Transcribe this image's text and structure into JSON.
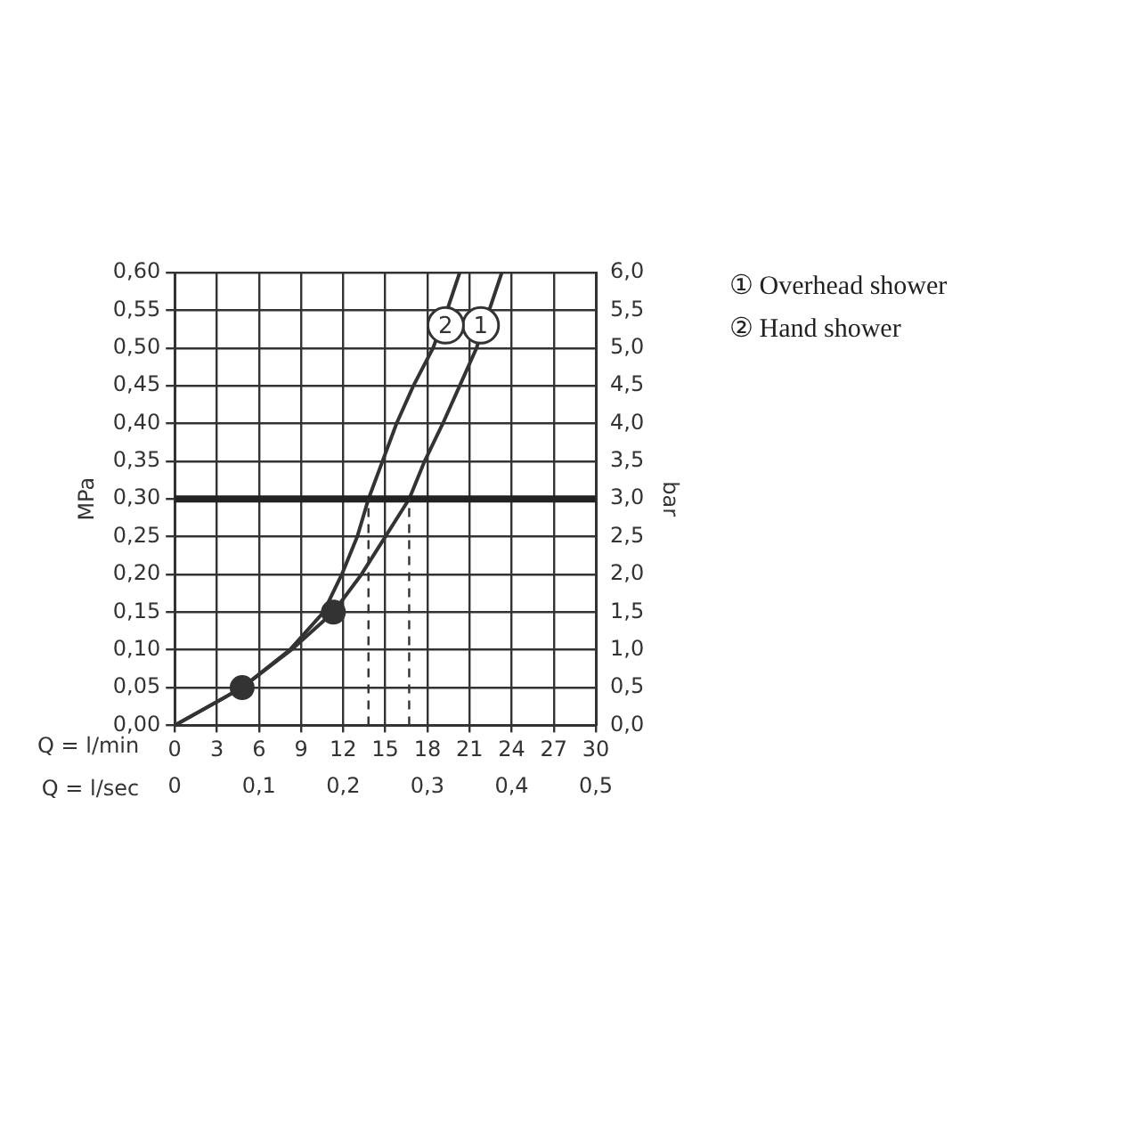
{
  "chart_data": {
    "type": "line",
    "xlabel": "Q = l/min",
    "x2label": "Q = l/sec",
    "ylabel": "MPa",
    "y2label": "bar",
    "xlim": [
      0,
      30
    ],
    "xticks": [
      0,
      3,
      6,
      9,
      12,
      15,
      18,
      21,
      24,
      27,
      30
    ],
    "x2lim": [
      0,
      0.5
    ],
    "x2ticks": [
      {
        "value": 0,
        "label": "0"
      },
      {
        "value": 0.1,
        "label": "0,1"
      },
      {
        "value": 0.2,
        "label": "0,2"
      },
      {
        "value": 0.3,
        "label": "0,3"
      },
      {
        "value": 0.4,
        "label": "0,4"
      },
      {
        "value": 0.5,
        "label": "0,5"
      }
    ],
    "ylim": [
      0,
      0.6
    ],
    "yticks": [
      {
        "value": 0,
        "label": "0,00"
      },
      {
        "value": 0.05,
        "label": "0,05"
      },
      {
        "value": 0.1,
        "label": "0,10"
      },
      {
        "value": 0.15,
        "label": "0,15"
      },
      {
        "value": 0.2,
        "label": "0,20"
      },
      {
        "value": 0.25,
        "label": "0,25"
      },
      {
        "value": 0.3,
        "label": "0,30"
      },
      {
        "value": 0.35,
        "label": "0,35"
      },
      {
        "value": 0.4,
        "label": "0,40"
      },
      {
        "value": 0.45,
        "label": "0,45"
      },
      {
        "value": 0.5,
        "label": "0,50"
      },
      {
        "value": 0.55,
        "label": "0,55"
      },
      {
        "value": 0.6,
        "label": "0,60"
      }
    ],
    "y2lim": [
      0,
      6
    ],
    "y2ticks": [
      {
        "value": 0,
        "label": "0,0"
      },
      {
        "value": 0.5,
        "label": "0,5"
      },
      {
        "value": 1,
        "label": "1,0"
      },
      {
        "value": 1.5,
        "label": "1,5"
      },
      {
        "value": 2,
        "label": "2,0"
      },
      {
        "value": 2.5,
        "label": "2,5"
      },
      {
        "value": 3,
        "label": "3,0"
      },
      {
        "value": 3.5,
        "label": "3,5"
      },
      {
        "value": 4,
        "label": "4,0"
      },
      {
        "value": 4.5,
        "label": "4,5"
      },
      {
        "value": 5,
        "label": "5,0"
      },
      {
        "value": 5.5,
        "label": "5,5"
      },
      {
        "value": 6,
        "label": "6,0"
      }
    ],
    "grid": true,
    "legend": "right",
    "marker": "none",
    "line_style": "solid",
    "series": [
      {
        "name": "① Overhead shower",
        "color": "#333333",
        "x": [
          0,
          4.8,
          8.3,
          11.3,
          13.3,
          15.0,
          16.7,
          17.8,
          19.1,
          20.3,
          21.5,
          22.4,
          23.3
        ],
        "values": [
          0,
          0.05,
          0.1,
          0.15,
          0.2,
          0.25,
          0.3,
          0.35,
          0.4,
          0.45,
          0.5,
          0.55,
          0.6
        ]
      },
      {
        "name": "② Hand shower",
        "color": "#333333",
        "x": [
          0,
          4.8,
          8.2,
          10.6,
          11.9,
          13.0,
          13.8,
          14.8,
          15.8,
          17.0,
          18.4,
          19.4,
          20.3
        ],
        "values": [
          0,
          0.05,
          0.1,
          0.15,
          0.2,
          0.25,
          0.3,
          0.35,
          0.4,
          0.45,
          0.5,
          0.55,
          0.6
        ]
      },
      {
        "type": "scatter",
        "marker": "circle",
        "color": "#333333",
        "x": [
          4.8,
          11.3
        ],
        "values": [
          0.05,
          0.15
        ]
      }
    ],
    "ref_lines": [
      {
        "axis": "y",
        "value": 0.3,
        "color": "#222222",
        "line_style": "solid"
      },
      {
        "axis": "x",
        "value": 13.8,
        "color": "#333333",
        "line_style": "dashed"
      },
      {
        "axis": "x",
        "value": 16.7,
        "color": "#333333",
        "line_style": "dashed"
      }
    ],
    "annotations": [
      {
        "text": "1",
        "x": 21.8,
        "y": 0.53
      },
      {
        "text": "2",
        "x": 19.3,
        "y": 0.53
      }
    ]
  }
}
